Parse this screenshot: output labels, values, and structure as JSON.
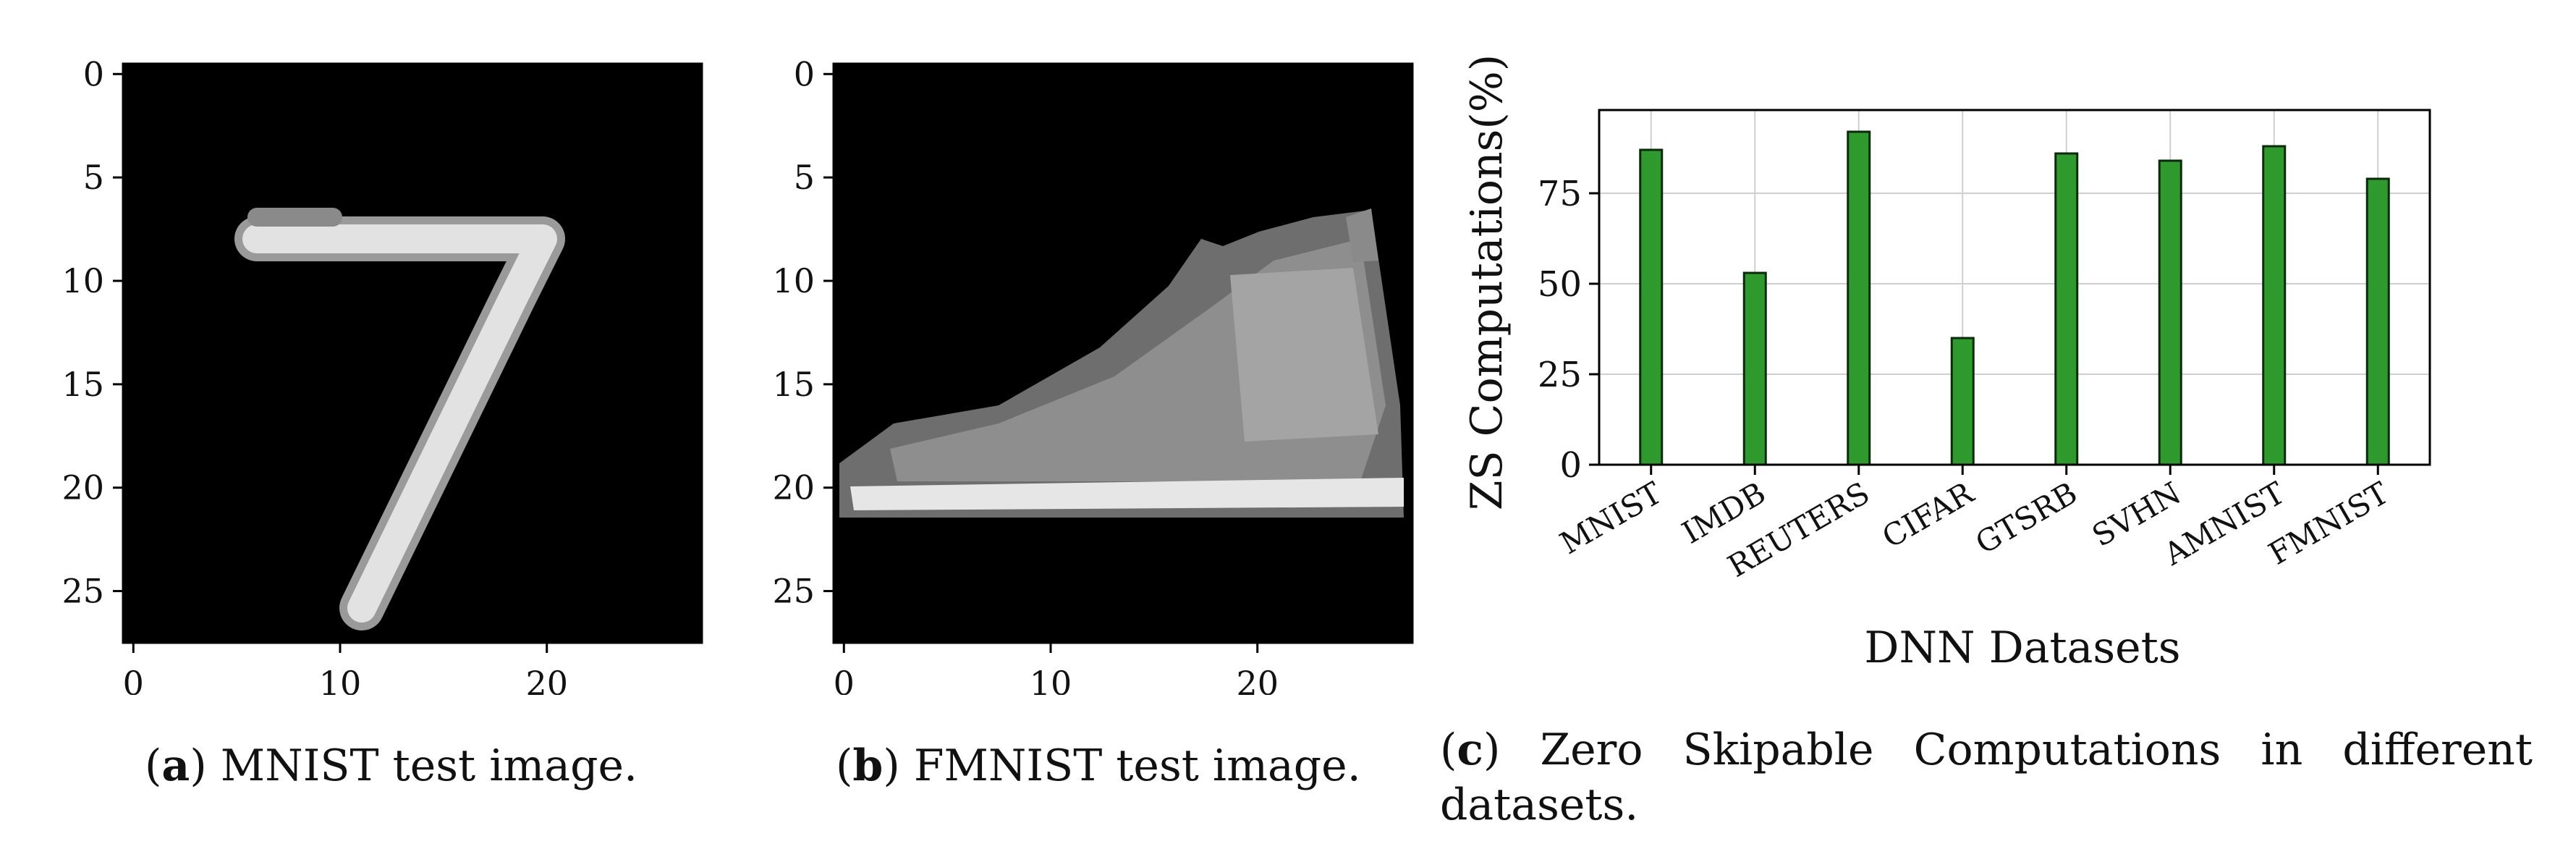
{
  "panels": [
    {
      "caption_label": "a",
      "caption_text": "MNIST test image.",
      "image_desc": "handwritten digit seven",
      "x_ticks": [
        "0",
        "10",
        "20"
      ],
      "y_ticks": [
        "0",
        "5",
        "10",
        "15",
        "20",
        "25"
      ]
    },
    {
      "caption_label": "b",
      "caption_text": "FMNIST test image.",
      "image_desc": "grayscale ankle boot",
      "x_ticks": [
        "0",
        "10",
        "20"
      ],
      "y_ticks": [
        "0",
        "5",
        "10",
        "15",
        "20",
        "25"
      ]
    }
  ],
  "chart_data": {
    "type": "bar",
    "categories": [
      "MNIST",
      "IMDB",
      "REUTERS",
      "CIFAR",
      "GTSRB",
      "SVHN",
      "AMNIST",
      "FMNIST"
    ],
    "values": [
      87,
      53,
      92,
      35,
      86,
      84,
      88,
      79
    ],
    "title": "",
    "xlabel": "DNN Datasets",
    "ylabel": "ZS Computations(%)",
    "ylim": [
      0,
      98
    ],
    "yticks": [
      0,
      25,
      50,
      75
    ],
    "grid": true,
    "bar_color": "#2e9a2e",
    "caption_label": "c",
    "caption_text": "Zero Skipable Computations in different datasets."
  }
}
